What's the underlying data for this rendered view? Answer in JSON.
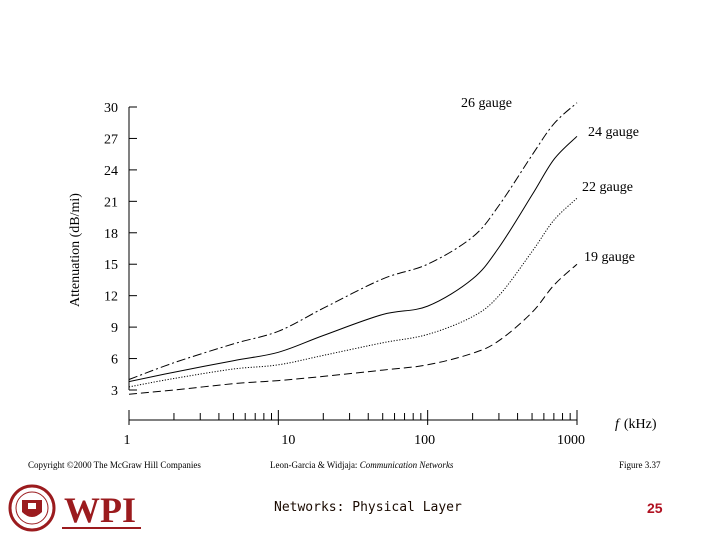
{
  "chart_data": {
    "type": "line",
    "title": "",
    "xlabel": "f (kHz)",
    "xlabel_parts": {
      "symbol": "f",
      "unit": "(kHz)"
    },
    "ylabel": "Attenuation (dB/mi)",
    "xscale": "log",
    "xlim": [
      1,
      1000
    ],
    "ylim": [
      3,
      30
    ],
    "x_ticks": [
      1,
      10,
      100,
      1000
    ],
    "x_tick_labels": [
      "1",
      "10",
      "100",
      "1000"
    ],
    "y_ticks": [
      3,
      6,
      9,
      12,
      15,
      18,
      21,
      24,
      27,
      30
    ],
    "y_tick_labels": [
      "3",
      "6",
      "9",
      "12",
      "15",
      "18",
      "21",
      "24",
      "27",
      "30"
    ],
    "grid": false,
    "series": [
      {
        "name": "26 gauge",
        "style": "dashdot",
        "x": [
          1,
          2,
          5,
          10,
          20,
          50,
          100,
          200,
          300,
          500,
          700,
          1000
        ],
        "y": [
          4.0,
          5.6,
          7.4,
          8.6,
          10.8,
          13.6,
          15.0,
          17.6,
          20.6,
          25.4,
          28.4,
          30.4
        ]
      },
      {
        "name": "24 gauge",
        "style": "solid",
        "x": [
          1,
          2,
          5,
          10,
          20,
          50,
          100,
          200,
          300,
          500,
          700,
          1000
        ],
        "y": [
          3.8,
          4.7,
          5.8,
          6.6,
          8.2,
          10.2,
          11.0,
          13.6,
          16.6,
          21.6,
          25.0,
          27.2
        ]
      },
      {
        "name": "22 gauge",
        "style": "dotted",
        "x": [
          1,
          2,
          5,
          10,
          20,
          50,
          100,
          200,
          300,
          500,
          700,
          1000
        ],
        "y": [
          3.3,
          4.1,
          5.0,
          5.4,
          6.3,
          7.5,
          8.3,
          10.0,
          12.0,
          16.2,
          19.2,
          21.3
        ]
      },
      {
        "name": "19 gauge",
        "style": "dashed",
        "x": [
          1,
          2,
          5,
          10,
          20,
          50,
          100,
          200,
          300,
          500,
          700,
          1000
        ],
        "y": [
          2.6,
          3.0,
          3.6,
          3.9,
          4.3,
          4.9,
          5.4,
          6.5,
          7.7,
          10.4,
          13.0,
          15.0
        ]
      }
    ]
  },
  "footer": {
    "copyright": "Copyright ©2000 The McGraw Hill Companies",
    "citation_authors": "Leon-Garcia & Widjaja:",
    "citation_title": "Communication Networks",
    "figure": "Figure 3.37",
    "slide_title": "Networks: Physical Layer",
    "page_number": "25",
    "logo_text": "WPI"
  },
  "colors": {
    "brand": "#9b1b1e",
    "page_number": "#b01020",
    "ink": "#000000"
  }
}
